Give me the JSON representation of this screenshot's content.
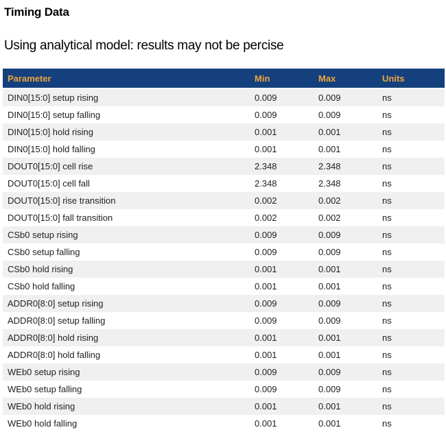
{
  "page": {
    "title": "Timing Data",
    "subtitle": "Using analytical model: results may not be percise"
  },
  "table": {
    "columns": [
      "Parameter",
      "Min",
      "Max",
      "Units"
    ],
    "rows": [
      {
        "parameter": "DIN0[15:0] setup rising",
        "min": "0.009",
        "max": "0.009",
        "units": "ns"
      },
      {
        "parameter": "DIN0[15:0] setup falling",
        "min": "0.009",
        "max": "0.009",
        "units": "ns"
      },
      {
        "parameter": "DIN0[15:0] hold rising",
        "min": "0.001",
        "max": "0.001",
        "units": "ns"
      },
      {
        "parameter": "DIN0[15:0] hold falling",
        "min": "0.001",
        "max": "0.001",
        "units": "ns"
      },
      {
        "parameter": "DOUT0[15:0] cell rise",
        "min": "2.348",
        "max": "2.348",
        "units": "ns"
      },
      {
        "parameter": "DOUT0[15:0] cell fall",
        "min": "2.348",
        "max": "2.348",
        "units": "ns"
      },
      {
        "parameter": "DOUT0[15:0] rise transition",
        "min": "0.002",
        "max": "0.002",
        "units": "ns"
      },
      {
        "parameter": "DOUT0[15:0] fall transition",
        "min": "0.002",
        "max": "0.002",
        "units": "ns"
      },
      {
        "parameter": "CSb0 setup rising",
        "min": "0.009",
        "max": "0.009",
        "units": "ns"
      },
      {
        "parameter": "CSb0 setup falling",
        "min": "0.009",
        "max": "0.009",
        "units": "ns"
      },
      {
        "parameter": "CSb0 hold rising",
        "min": "0.001",
        "max": "0.001",
        "units": "ns"
      },
      {
        "parameter": "CSb0 hold falling",
        "min": "0.001",
        "max": "0.001",
        "units": "ns"
      },
      {
        "parameter": "ADDR0[8:0] setup rising",
        "min": "0.009",
        "max": "0.009",
        "units": "ns"
      },
      {
        "parameter": "ADDR0[8:0] setup falling",
        "min": "0.009",
        "max": "0.009",
        "units": "ns"
      },
      {
        "parameter": "ADDR0[8:0] hold rising",
        "min": "0.001",
        "max": "0.001",
        "units": "ns"
      },
      {
        "parameter": "ADDR0[8:0] hold falling",
        "min": "0.001",
        "max": "0.001",
        "units": "ns"
      },
      {
        "parameter": "WEb0 setup rising",
        "min": "0.009",
        "max": "0.009",
        "units": "ns"
      },
      {
        "parameter": "WEb0 setup falling",
        "min": "0.009",
        "max": "0.009",
        "units": "ns"
      },
      {
        "parameter": "WEb0 hold rising",
        "min": "0.001",
        "max": "0.001",
        "units": "ns"
      },
      {
        "parameter": "WEb0 hold falling",
        "min": "0.001",
        "max": "0.001",
        "units": "ns"
      }
    ]
  },
  "colors": {
    "header_bg": "#14417E",
    "header_text": "#F0A43C",
    "row_alt_bg": "#F0F0F0",
    "row_bg": "#FFFFFF",
    "text": "#1E1E1E"
  }
}
